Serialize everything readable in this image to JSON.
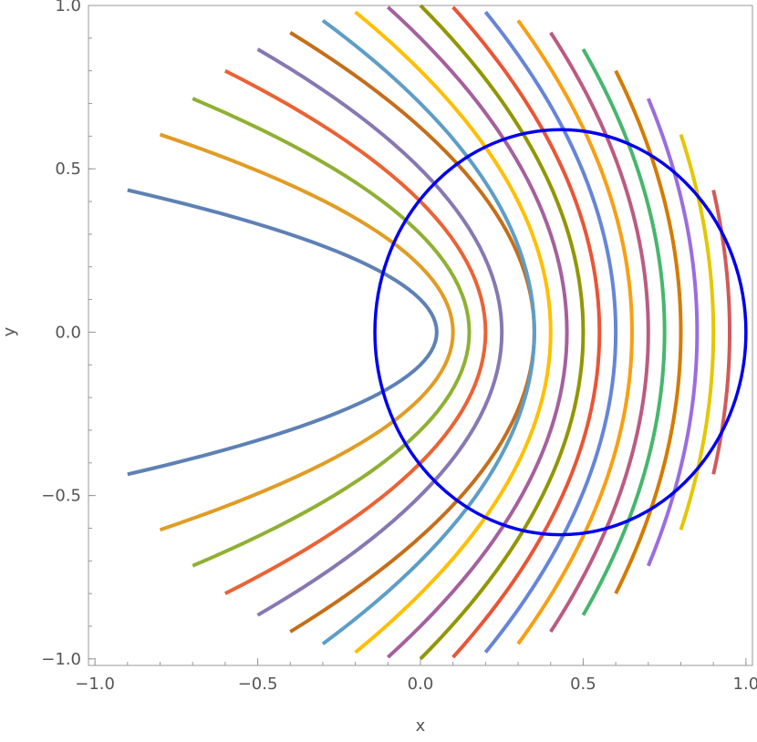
{
  "chart_data": {
    "type": "line",
    "title": "",
    "xlabel": "x",
    "ylabel": "y",
    "xlim": [
      -1.02,
      1.02
    ],
    "ylim": [
      -1.02,
      1.0
    ],
    "grid": false,
    "x_ticks": [
      -1.0,
      -0.5,
      0.0,
      0.5,
      1.0
    ],
    "x_tick_labels": [
      "−1.0",
      "−0.5",
      "0.0",
      "0.5",
      "1.0"
    ],
    "y_ticks": [
      -1.0,
      -0.5,
      0.0,
      0.5,
      1.0
    ],
    "y_tick_labels": [
      "−1.0",
      "−0.5",
      "0.0",
      "0.5",
      "1.0"
    ],
    "series": [
      {
        "color": "#5e81b5",
        "values": [
          [
            -0.9,
            0.435
          ],
          [
            0.05,
            0.0
          ],
          [
            -0.9,
            -0.435
          ]
        ]
      },
      {
        "color": "#e19c24",
        "values": [
          [
            -0.8,
            0.605
          ],
          [
            0.1,
            0.0
          ],
          [
            -0.8,
            -0.605
          ]
        ]
      },
      {
        "color": "#8fb032",
        "values": [
          [
            -0.7,
            0.715
          ],
          [
            0.15,
            0.0
          ],
          [
            -0.7,
            -0.715
          ]
        ]
      },
      {
        "color": "#eb6235",
        "values": [
          [
            -0.6,
            0.8
          ],
          [
            0.2,
            0.0
          ],
          [
            -0.6,
            -0.8
          ]
        ]
      },
      {
        "color": "#8778b3",
        "values": [
          [
            -0.5,
            0.866
          ],
          [
            0.25,
            0.0
          ],
          [
            -0.5,
            -0.866
          ]
        ]
      },
      {
        "color": "#c56e1a",
        "values": [
          [
            -0.4,
            0.917
          ],
          [
            0.35,
            0.0
          ],
          [
            -0.4,
            -0.917
          ]
        ]
      },
      {
        "color": "#5d9ec7",
        "values": [
          [
            -0.3,
            0.954
          ],
          [
            0.35,
            0.0
          ],
          [
            -0.3,
            -0.954
          ]
        ]
      },
      {
        "color": "#ffbf00",
        "values": [
          [
            -0.2,
            0.98
          ],
          [
            0.4,
            0.0
          ],
          [
            -0.2,
            -0.98
          ]
        ]
      },
      {
        "color": "#a5609d",
        "values": [
          [
            -0.1,
            0.995
          ],
          [
            0.45,
            0.0
          ],
          [
            -0.1,
            -0.995
          ]
        ]
      },
      {
        "color": "#929600",
        "values": [
          [
            0.0,
            1.0
          ],
          [
            0.5,
            0.0
          ],
          [
            0.0,
            -1.0
          ]
        ]
      },
      {
        "color": "#e95536",
        "values": [
          [
            0.1,
            0.995
          ],
          [
            0.55,
            0.0
          ],
          [
            0.1,
            -0.995
          ]
        ]
      },
      {
        "color": "#6685d9",
        "values": [
          [
            0.2,
            0.98
          ],
          [
            0.6,
            0.0
          ],
          [
            0.2,
            -0.98
          ]
        ]
      },
      {
        "color": "#f89f13",
        "values": [
          [
            0.3,
            0.954
          ],
          [
            0.65,
            0.0
          ],
          [
            0.3,
            -0.954
          ]
        ]
      },
      {
        "color": "#bc5b80",
        "values": [
          [
            0.4,
            0.917
          ],
          [
            0.7,
            0.0
          ],
          [
            0.4,
            -0.917
          ]
        ]
      },
      {
        "color": "#47b66d",
        "values": [
          [
            0.5,
            0.866
          ],
          [
            0.75,
            0.0
          ],
          [
            0.5,
            -0.866
          ]
        ]
      },
      {
        "color": "#d47b00",
        "values": [
          [
            0.6,
            0.8
          ],
          [
            0.8,
            0.0
          ],
          [
            0.6,
            -0.8
          ]
        ]
      },
      {
        "color": "#9b6de0",
        "values": [
          [
            0.7,
            0.715
          ],
          [
            0.85,
            0.0
          ],
          [
            0.7,
            -0.715
          ]
        ]
      },
      {
        "color": "#e4c700",
        "values": [
          [
            0.8,
            0.605
          ],
          [
            0.9,
            0.0
          ],
          [
            0.8,
            -0.605
          ]
        ]
      },
      {
        "color": "#d05a5a",
        "values": [
          [
            0.9,
            0.435
          ],
          [
            0.95,
            0.0
          ],
          [
            0.9,
            -0.435
          ]
        ]
      }
    ],
    "ellipse": {
      "color": "#0000ee",
      "center": [
        0.43,
        0.0
      ],
      "rx": 0.57,
      "ry": 0.62
    }
  }
}
